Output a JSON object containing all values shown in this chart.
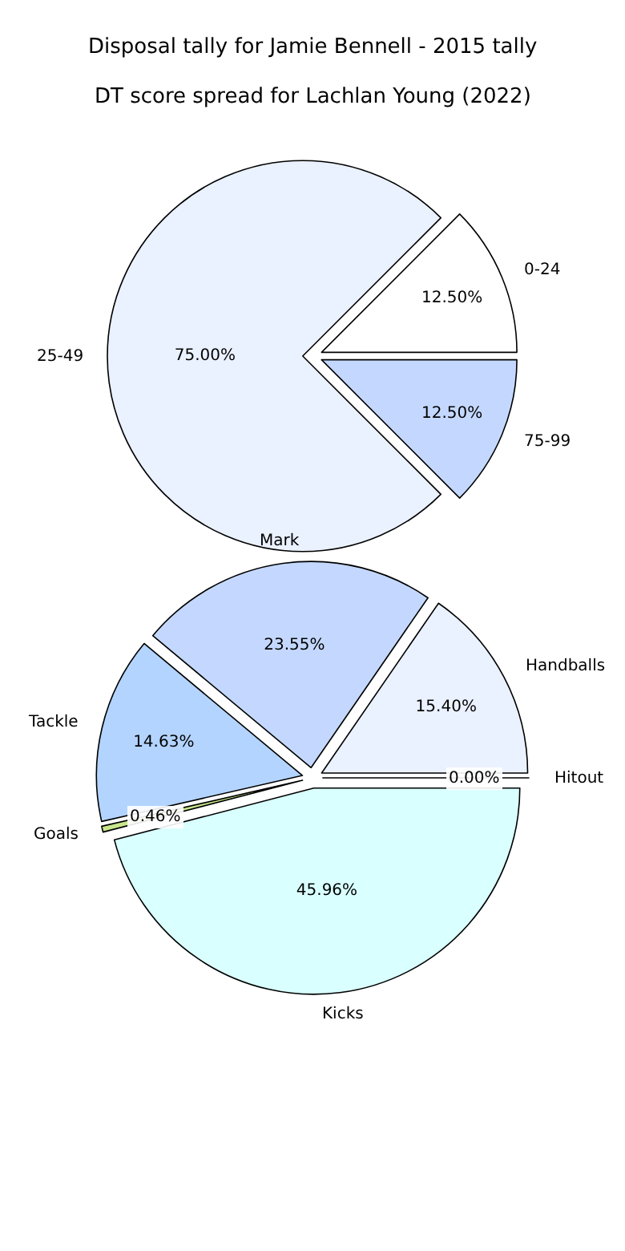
{
  "chart_data": [
    {
      "type": "pie",
      "title": "Disposal tally for Jamie Bennell - 2015 tally",
      "categories": [
        "Handballs",
        "Mark",
        "Tackle",
        "Goals",
        "Kicks",
        "Hitout"
      ],
      "values": [
        15.4,
        23.55,
        14.63,
        0.46,
        45.96,
        0.0
      ],
      "value_labels": [
        "15.40%",
        "23.55%",
        "14.63%",
        "0.46%",
        "45.96%",
        "0.00%"
      ],
      "colors": [
        "#eaf1ff",
        "#c4d8ff",
        "#b3d4ff",
        "#c8e68c",
        "#d9ffff",
        "#ffffff"
      ]
    },
    {
      "type": "pie",
      "title": "DT score spread for Lachlan Young (2022)",
      "categories": [
        "0-24",
        "25-49",
        "75-99"
      ],
      "values": [
        12.5,
        75.0,
        12.5
      ],
      "value_labels": [
        "12.50%",
        "75.00%",
        "12.50%"
      ],
      "colors": [
        "#ffffff",
        "#eaf1ff",
        "#c4d8ff"
      ]
    }
  ]
}
